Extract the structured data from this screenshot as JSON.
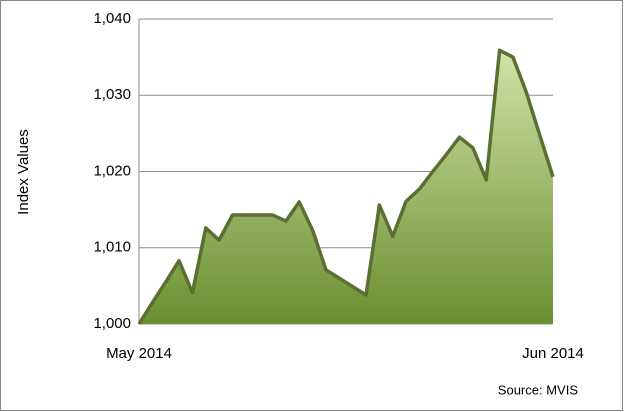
{
  "chart_data": {
    "type": "area",
    "y_label": "Index Values",
    "annotation": "Source: MVIS",
    "categories": [
      "May 2014",
      null,
      null,
      null,
      null,
      null,
      null,
      null,
      null,
      null,
      null,
      null,
      null,
      null,
      null,
      null,
      null,
      null,
      null,
      null,
      null,
      null,
      null,
      null,
      null,
      null,
      null,
      null,
      null,
      null,
      null,
      "Jun 2014"
    ],
    "values": [
      1000,
      1002.8,
      1005.5,
      1008.3,
      1004.1,
      1012.6,
      1011.0,
      1014.3,
      1014.3,
      1014.3,
      1014.3,
      1013.5,
      1016.0,
      1012.3,
      1007.1,
      1006.0,
      1004.9,
      1003.8,
      1015.6,
      1011.5,
      1016.1,
      1017.7,
      1020.0,
      1022.2,
      1024.5,
      1023.1,
      1018.9,
      1035.9,
      1035.0,
      1030.4,
      1024.8,
      1019.3
    ],
    "color": "#5b6f33",
    "fill_top": "#cfe3a8",
    "fill_bottom": "#6a8f30",
    "ylim": [
      1000,
      1040
    ],
    "yticks": [
      {
        "value": 1000,
        "label": "1,000"
      },
      {
        "value": 1010,
        "label": "1,010"
      },
      {
        "value": 1020,
        "label": "1,020"
      },
      {
        "value": 1030,
        "label": "1,030"
      },
      {
        "value": 1040,
        "label": "1,040"
      }
    ],
    "grid": true
  }
}
